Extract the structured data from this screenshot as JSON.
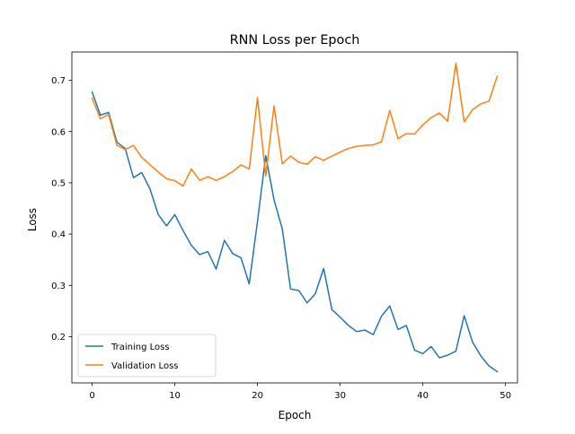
{
  "chart_data": {
    "type": "line",
    "title": "RNN Loss per Epoch",
    "xlabel": "Epoch",
    "ylabel": "Loss",
    "xlim": [
      -2.45,
      51.45
    ],
    "ylim": [
      0.11,
      0.755
    ],
    "xticks": [
      0,
      10,
      20,
      30,
      40,
      50
    ],
    "yticks": [
      0.2,
      0.3,
      0.4,
      0.5,
      0.6,
      0.7
    ],
    "ytick_labels": [
      "0.2",
      "0.3",
      "0.4",
      "0.5",
      "0.6",
      "0.7"
    ],
    "grid": false,
    "legend_position": "lower-left",
    "x": [
      0,
      1,
      2,
      3,
      4,
      5,
      6,
      7,
      8,
      9,
      10,
      11,
      12,
      13,
      14,
      15,
      16,
      17,
      18,
      19,
      20,
      21,
      22,
      23,
      24,
      25,
      26,
      27,
      28,
      29,
      30,
      31,
      32,
      33,
      34,
      35,
      36,
      37,
      38,
      39,
      40,
      41,
      42,
      43,
      44,
      45,
      46,
      47,
      48,
      49
    ],
    "series": [
      {
        "name": "Training Loss",
        "color": "#1f77b4",
        "values": [
          0.677,
          0.632,
          0.637,
          0.579,
          0.567,
          0.51,
          0.52,
          0.488,
          0.438,
          0.416,
          0.438,
          0.407,
          0.378,
          0.36,
          0.366,
          0.332,
          0.388,
          0.362,
          0.354,
          0.303,
          0.425,
          0.553,
          0.467,
          0.41,
          0.293,
          0.29,
          0.266,
          0.284,
          0.333,
          0.253,
          0.238,
          0.222,
          0.21,
          0.213,
          0.204,
          0.24,
          0.26,
          0.214,
          0.222,
          0.174,
          0.167,
          0.181,
          0.159,
          0.164,
          0.172,
          0.241,
          0.19,
          0.163,
          0.143,
          0.132
        ]
      },
      {
        "name": "Validation Loss",
        "color": "#ff7f0e",
        "values": [
          0.665,
          0.625,
          0.633,
          0.573,
          0.565,
          0.573,
          0.55,
          0.535,
          0.521,
          0.508,
          0.504,
          0.494,
          0.527,
          0.505,
          0.512,
          0.505,
          0.512,
          0.522,
          0.535,
          0.527,
          0.666,
          0.513,
          0.65,
          0.537,
          0.552,
          0.54,
          0.536,
          0.551,
          0.544,
          0.552,
          0.56,
          0.567,
          0.571,
          0.573,
          0.574,
          0.58,
          0.641,
          0.586,
          0.596,
          0.595,
          0.613,
          0.627,
          0.636,
          0.62,
          0.733,
          0.619,
          0.642,
          0.654,
          0.659,
          0.708
        ]
      }
    ]
  }
}
